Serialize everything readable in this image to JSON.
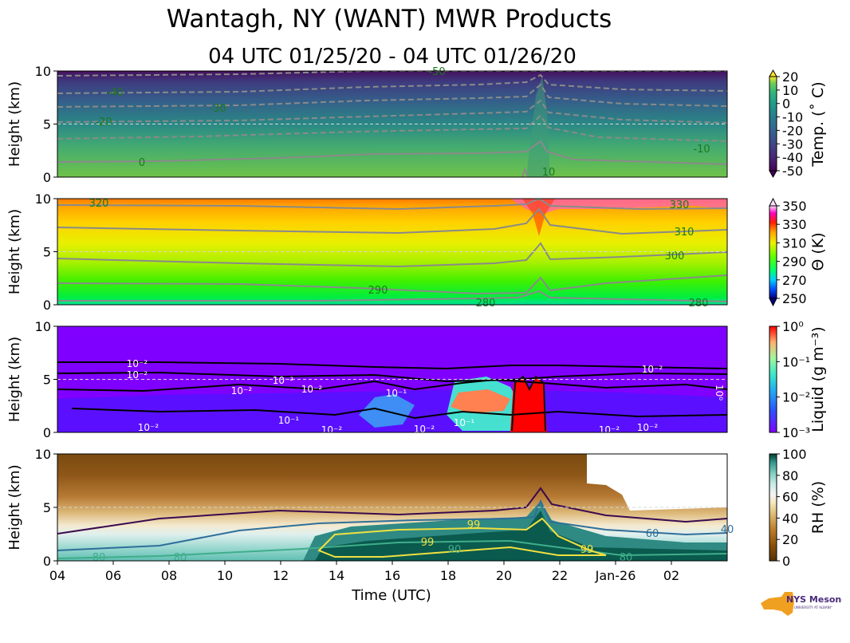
{
  "title": "Wantagh, NY (WANT) MWR Products",
  "subtitle": "04 UTC 01/25/20 - 04 UTC 01/26/20",
  "logo_text": "NYS Mesonet",
  "logo_subtext": "UNIVERSITY AT ALBANY",
  "colors": {
    "contour_gray": "#8a8a8a",
    "ref_line": "#d8d8d8",
    "temp_label": "#1a7a1a",
    "theta_label": "#1a7a1a"
  },
  "chart_data": [
    {
      "type": "heatmap",
      "name": "temperature",
      "ylabel": "Height (km)",
      "ylim": [
        0,
        10
      ],
      "yticks": [
        "0",
        "5",
        "10"
      ],
      "colorbar_label": "Temp. (˚ C)",
      "colorbar_ticks": [
        "20",
        "10",
        "0",
        "-10",
        "-20",
        "-30",
        "-40",
        "-50"
      ],
      "contour_labels": [
        "-50",
        "-40",
        "-30",
        "-20",
        "-10",
        "0",
        "10"
      ]
    },
    {
      "type": "heatmap",
      "name": "potential_temperature",
      "ylabel": "Height (km)",
      "ylim": [
        0,
        10
      ],
      "yticks": [
        "0",
        "5",
        "10"
      ],
      "colorbar_label": "Θ (K)",
      "colorbar_ticks": [
        "350",
        "330",
        "310",
        "290",
        "270",
        "250"
      ],
      "contour_labels": [
        "320",
        "330",
        "310",
        "300",
        "290",
        "280",
        "280"
      ]
    },
    {
      "type": "heatmap",
      "name": "liquid_water",
      "ylabel": "Height (km)",
      "ylim": [
        0,
        10
      ],
      "yticks": [
        "0",
        "5",
        "10"
      ],
      "colorbar_label": "Liquid (g m⁻³)",
      "colorbar_ticks": [
        "10⁰",
        "10⁻¹",
        "10⁻²",
        "10⁻³"
      ],
      "contour_labels": [
        "10⁻²",
        "10⁻²",
        "10⁻²",
        "10⁻²",
        "10⁻²",
        "10⁻¹",
        "10⁻¹",
        "10⁻¹",
        "10⁻²",
        "10⁻²",
        "10⁻²",
        "10⁻²",
        "10⁻²",
        "10⁻²",
        "10⁰"
      ]
    },
    {
      "type": "heatmap",
      "name": "relative_humidity",
      "ylabel": "Height (km)",
      "xlabel": "Time (UTC)",
      "ylim": [
        0,
        10
      ],
      "yticks": [
        "0",
        "5",
        "10"
      ],
      "xticks": [
        "04",
        "06",
        "08",
        "10",
        "12",
        "14",
        "16",
        "18",
        "20",
        "22",
        "Jan-26",
        "02"
      ],
      "colorbar_label": "RH (%)",
      "colorbar_ticks": [
        "100",
        "80",
        "60",
        "40",
        "20",
        "0"
      ],
      "contour_labels": [
        "99",
        "99",
        "99",
        "60",
        "40",
        "80",
        "80",
        "80",
        "90"
      ]
    }
  ]
}
